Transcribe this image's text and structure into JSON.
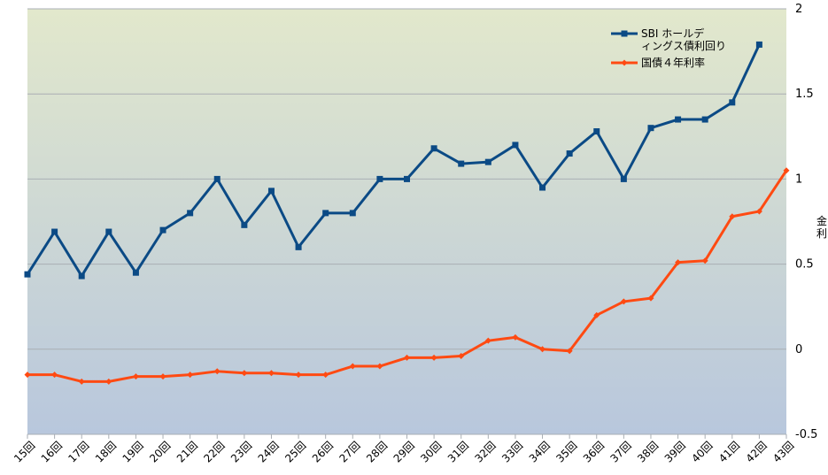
{
  "chart_data": {
    "type": "line",
    "categories": [
      "15回",
      "16回",
      "17回",
      "18回",
      "19回",
      "20回",
      "21回",
      "22回",
      "23回",
      "24回",
      "25回",
      "26回",
      "27回",
      "28回",
      "29回",
      "30回",
      "31回",
      "32回",
      "33回",
      "34回",
      "35回",
      "36回",
      "37回",
      "38回",
      "39回",
      "40回",
      "41回",
      "42回",
      "43回"
    ],
    "series": [
      {
        "name": "SBI ホールディングス債利回り",
        "color": "#0b4a85",
        "marker": "square",
        "values": [
          0.44,
          0.69,
          0.43,
          0.69,
          0.45,
          0.7,
          0.8,
          1.0,
          0.73,
          0.93,
          0.6,
          0.8,
          0.8,
          1.0,
          1.0,
          1.18,
          1.09,
          1.1,
          1.2,
          0.95,
          1.15,
          1.28,
          1.0,
          1.3,
          1.35,
          1.35,
          1.45,
          1.79,
          null
        ]
      },
      {
        "name": "国債４年利率",
        "color": "#ff4a12",
        "marker": "diamond",
        "values": [
          -0.15,
          -0.15,
          -0.19,
          -0.19,
          -0.16,
          -0.16,
          -0.15,
          -0.13,
          -0.14,
          -0.14,
          -0.15,
          -0.15,
          -0.1,
          -0.1,
          -0.05,
          -0.05,
          -0.04,
          0.05,
          0.07,
          0.0,
          -0.01,
          0.2,
          0.28,
          0.3,
          0.51,
          0.52,
          0.78,
          0.81,
          1.05
        ]
      }
    ],
    "ylabel": "金利",
    "ylim": [
      -0.5,
      2
    ],
    "yticks": [
      "-0.5",
      "0",
      "0.5",
      "1",
      "1.5",
      "2"
    ],
    "grid": true,
    "legend_position": "top-right",
    "background_gradient": {
      "top": "#e2e8cc",
      "bottom": "#b8c7dd"
    }
  }
}
